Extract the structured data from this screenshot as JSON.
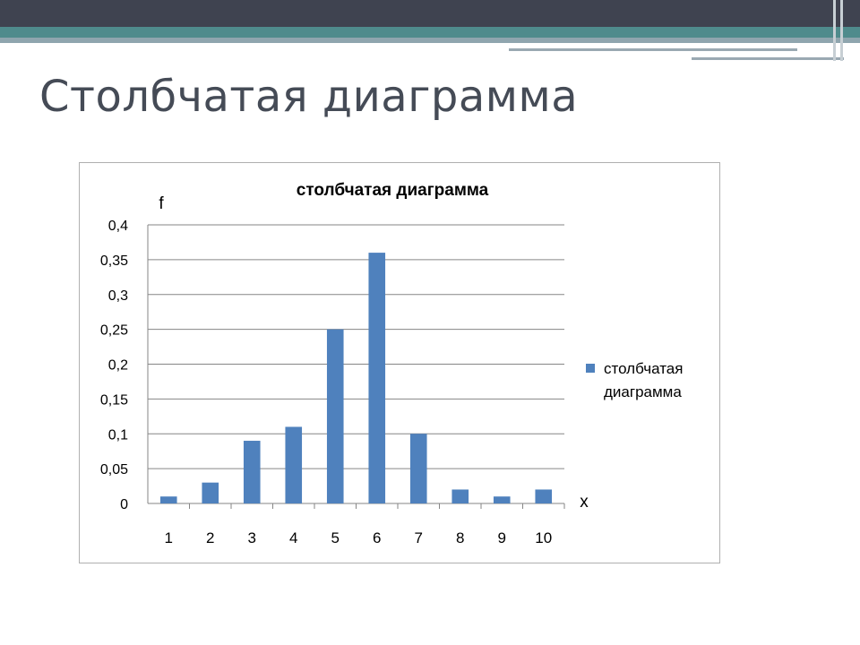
{
  "slide": {
    "title": "Столбчатая диаграмма"
  },
  "colors": {
    "bar": "#4f81bd",
    "grid": "#868686",
    "topbar": "#3f4350",
    "accent_teal": "#4f8b8c"
  },
  "chart_data": {
    "type": "bar",
    "title": "столбчатая диаграмма",
    "xlabel": "x",
    "ylabel": "f",
    "categories": [
      "1",
      "2",
      "3",
      "4",
      "5",
      "6",
      "7",
      "8",
      "9",
      "10"
    ],
    "series": [
      {
        "name": "столбчатая диаграмма",
        "values": [
          0.01,
          0.03,
          0.09,
          0.11,
          0.25,
          0.36,
          0.1,
          0.02,
          0.01,
          0.02
        ]
      }
    ],
    "ylim": [
      0,
      0.4
    ],
    "yticks": [
      "0",
      "0,05",
      "0,1",
      "0,15",
      "0,2",
      "0,25",
      "0,3",
      "0,35",
      "0,4"
    ],
    "grid": true,
    "legend_position": "right"
  }
}
